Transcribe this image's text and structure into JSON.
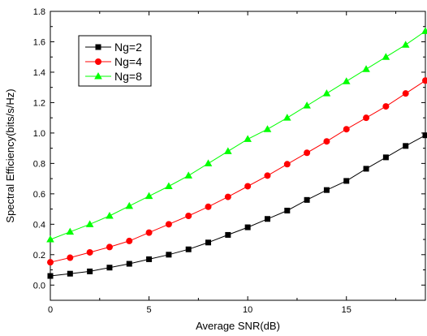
{
  "chart_data": {
    "type": "line",
    "title": "",
    "xlabel": "Average SNR(dB)",
    "ylabel": "Spectral Efficiency(bits/s/Hz)",
    "xlim": [
      0,
      19
    ],
    "ylim": [
      -0.1,
      1.8
    ],
    "xticks": [
      0,
      5,
      10,
      15
    ],
    "xtick_labels": [
      "0",
      "5",
      "10",
      "15"
    ],
    "yticks": [
      0.0,
      0.2,
      0.4,
      0.6,
      0.8,
      1.0,
      1.2,
      1.4,
      1.6,
      1.8
    ],
    "ytick_labels": [
      "0.0",
      "0.2",
      "0.4",
      "0.6",
      "0.8",
      "1.0",
      "1.2",
      "1.4",
      "1.6",
      "1.8"
    ],
    "grid": false,
    "legend_position": "top-left",
    "x": [
      0,
      1,
      2,
      3,
      4,
      5,
      6,
      7,
      8,
      9,
      10,
      11,
      12,
      13,
      14,
      15,
      16,
      17,
      18,
      19
    ],
    "series": [
      {
        "name": "Ng=2",
        "color": "#000000",
        "marker": "square",
        "values": [
          0.06,
          0.075,
          0.09,
          0.115,
          0.14,
          0.17,
          0.2,
          0.235,
          0.28,
          0.33,
          0.38,
          0.435,
          0.49,
          0.56,
          0.625,
          0.685,
          0.765,
          0.84,
          0.915,
          0.985
        ]
      },
      {
        "name": "Ng=4",
        "color": "#ff0000",
        "marker": "circle",
        "values": [
          0.15,
          0.18,
          0.215,
          0.25,
          0.29,
          0.345,
          0.4,
          0.455,
          0.515,
          0.58,
          0.65,
          0.72,
          0.795,
          0.87,
          0.945,
          1.025,
          1.1,
          1.175,
          1.26,
          1.345
        ]
      },
      {
        "name": "Ng=8",
        "color": "#00ff00",
        "marker": "triangle",
        "values": [
          0.3,
          0.35,
          0.4,
          0.455,
          0.52,
          0.585,
          0.65,
          0.72,
          0.8,
          0.88,
          0.96,
          1.025,
          1.1,
          1.18,
          1.26,
          1.34,
          1.42,
          1.5,
          1.58,
          1.67
        ]
      }
    ]
  }
}
